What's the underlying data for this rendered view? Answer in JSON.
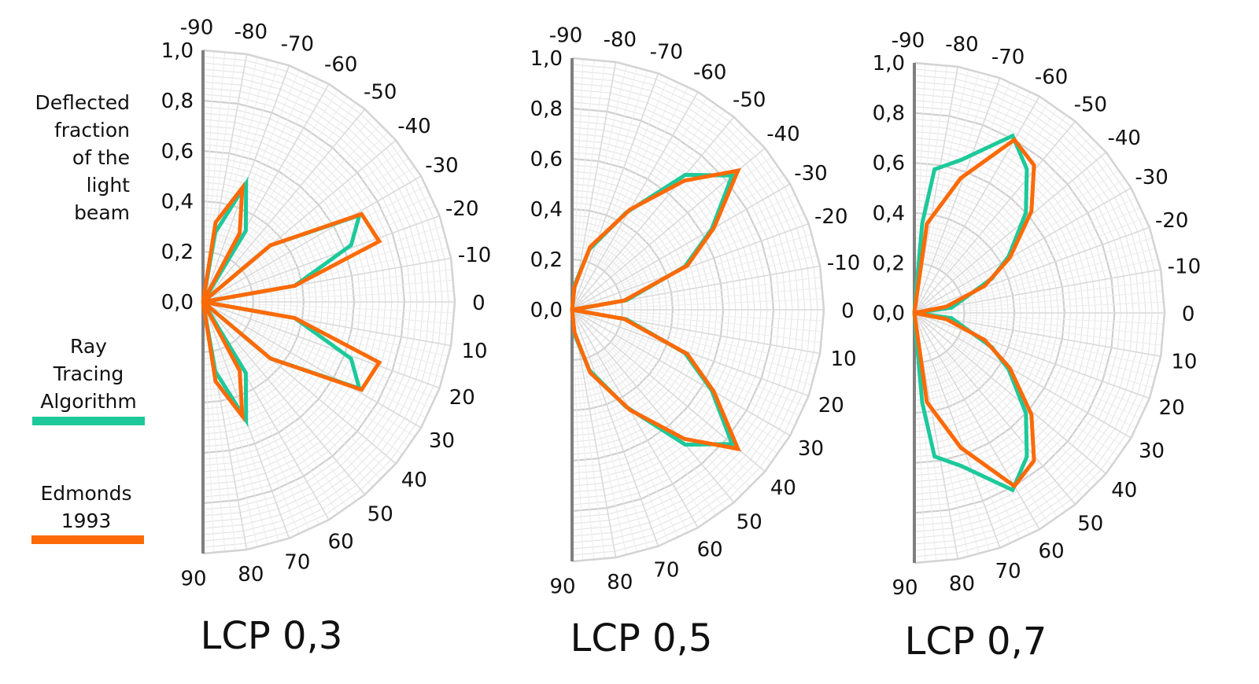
{
  "y_axis_label": [
    "Deflected",
    "fraction",
    "of the",
    "light",
    "beam"
  ],
  "legend": [
    {
      "name": "Ray Tracing Algorithm",
      "lines": [
        "Ray",
        "Tracing",
        "Algorithm"
      ],
      "color": "#1dc99a"
    },
    {
      "name": "Edmonds 1993",
      "lines": [
        "Edmonds",
        "1993"
      ],
      "color": "#fc6a08"
    }
  ],
  "chart_data": [
    {
      "type": "polar-line",
      "title": "LCP 0,3",
      "angle_range": [
        -90,
        90
      ],
      "angle_ticks": [
        "-90",
        "-80",
        "-70",
        "-60",
        "-50",
        "-40",
        "-30",
        "-20",
        "-10",
        "0",
        "10",
        "20",
        "30",
        "40",
        "50",
        "60",
        "70",
        "80",
        "90"
      ],
      "r_range": [
        0,
        1.0
      ],
      "r_ticks": [
        "0,0",
        "0,2",
        "0,4",
        "0,6",
        "0,8",
        "1,0"
      ],
      "grid": true,
      "series": [
        {
          "name": "Ray Tracing Algorithm",
          "points": [
            [
              0,
              0
            ],
            [
              -80,
              0.28
            ],
            [
              -70,
              0.5
            ],
            [
              -59,
              0.33
            ],
            [
              0,
              0
            ],
            [
              -40,
              0.35
            ],
            [
              -29,
              0.71
            ],
            [
              -21,
              0.63
            ],
            [
              -10,
              0.37
            ],
            [
              0,
              0
            ],
            [
              10,
              0.37
            ],
            [
              21,
              0.63
            ],
            [
              29,
              0.71
            ],
            [
              40,
              0.35
            ],
            [
              0,
              0
            ],
            [
              59,
              0.33
            ],
            [
              70,
              0.5
            ],
            [
              80,
              0.28
            ],
            [
              0,
              0
            ]
          ]
        },
        {
          "name": "Edmonds 1993",
          "points": [
            [
              0,
              0
            ],
            [
              -81,
              0.32
            ],
            [
              -71,
              0.48
            ],
            [
              -62,
              0.31
            ],
            [
              0,
              0
            ],
            [
              -40,
              0.35
            ],
            [
              -29,
              0.72
            ],
            [
              -19,
              0.74
            ],
            [
              -10,
              0.37
            ],
            [
              0,
              0
            ],
            [
              10,
              0.37
            ],
            [
              19,
              0.74
            ],
            [
              29,
              0.72
            ],
            [
              40,
              0.35
            ],
            [
              0,
              0
            ],
            [
              62,
              0.31
            ],
            [
              71,
              0.48
            ],
            [
              81,
              0.32
            ],
            [
              0,
              0
            ]
          ]
        }
      ]
    },
    {
      "type": "polar-line",
      "title": "LCP 0,5",
      "angle_range": [
        -90,
        90
      ],
      "angle_ticks": [
        "-90",
        "-80",
        "-70",
        "-60",
        "-50",
        "-40",
        "-30",
        "-20",
        "-10",
        "0",
        "10",
        "20",
        "30",
        "40",
        "50",
        "60",
        "70",
        "80",
        "90"
      ],
      "r_range": [
        0,
        1.0
      ],
      "r_ticks": [
        "0,0",
        "0,2",
        "0,4",
        "0,6",
        "0,8",
        "1,0"
      ],
      "grid": true,
      "series": [
        {
          "name": "Ray Tracing Algorithm",
          "points": [
            [
              -90,
              0
            ],
            [
              -84,
              0.1
            ],
            [
              -74,
              0.25
            ],
            [
              -61,
              0.44
            ],
            [
              -50,
              0.7
            ],
            [
              -40,
              0.83
            ],
            [
              -30,
              0.64
            ],
            [
              -21,
              0.48
            ],
            [
              -10,
              0.22
            ],
            [
              0,
              0
            ],
            [
              10,
              0.22
            ],
            [
              21,
              0.48
            ],
            [
              30,
              0.64
            ],
            [
              40,
              0.83
            ],
            [
              50,
              0.7
            ],
            [
              61,
              0.44
            ],
            [
              74,
              0.25
            ],
            [
              84,
              0.1
            ],
            [
              90,
              0
            ]
          ]
        },
        {
          "name": "Edmonds 1993",
          "points": [
            [
              -90,
              0
            ],
            [
              -84,
              0.09
            ],
            [
              -74,
              0.26
            ],
            [
              -60,
              0.46
            ],
            [
              -49,
              0.68
            ],
            [
              -40,
              0.86
            ],
            [
              -30,
              0.65
            ],
            [
              -21,
              0.49
            ],
            [
              -10,
              0.21
            ],
            [
              0,
              0
            ],
            [
              10,
              0.21
            ],
            [
              21,
              0.49
            ],
            [
              30,
              0.65
            ],
            [
              40,
              0.86
            ],
            [
              49,
              0.68
            ],
            [
              60,
              0.46
            ],
            [
              74,
              0.26
            ],
            [
              84,
              0.09
            ],
            [
              90,
              0
            ]
          ]
        }
      ]
    },
    {
      "type": "polar-line",
      "title": "LCP 0,7",
      "angle_range": [
        -90,
        90
      ],
      "angle_ticks": [
        "-90",
        "-80",
        "-70",
        "-60",
        "-50",
        "-40",
        "-30",
        "-20",
        "-10",
        "0",
        "10",
        "20",
        "30",
        "40",
        "50",
        "60",
        "70",
        "80",
        "90"
      ],
      "r_range": [
        0,
        1.0
      ],
      "r_ticks": [
        "0,0",
        "0,2",
        "0,4",
        "0,6",
        "0,8",
        "1,0"
      ],
      "grid": true,
      "series": [
        {
          "name": "Ray Tracing Algorithm",
          "points": [
            [
              -90,
              0
            ],
            [
              -85,
              0.36
            ],
            [
              -82,
              0.58
            ],
            [
              -73,
              0.64
            ],
            [
              -61,
              0.81
            ],
            [
              -52,
              0.73
            ],
            [
              -42,
              0.6
            ],
            [
              -31,
              0.44
            ],
            [
              -24,
              0.34
            ],
            [
              -8,
              0.15
            ],
            [
              0,
              0
            ],
            [
              8,
              0.15
            ],
            [
              24,
              0.34
            ],
            [
              31,
              0.44
            ],
            [
              42,
              0.6
            ],
            [
              52,
              0.73
            ],
            [
              61,
              0.81
            ],
            [
              73,
              0.64
            ],
            [
              82,
              0.58
            ],
            [
              85,
              0.36
            ],
            [
              90,
              0
            ]
          ]
        },
        {
          "name": "Edmonds 1993",
          "points": [
            [
              -90,
              0
            ],
            [
              -82,
              0.36
            ],
            [
              -71,
              0.57
            ],
            [
              -60,
              0.8
            ],
            [
              -51,
              0.76
            ],
            [
              -41,
              0.62
            ],
            [
              -30,
              0.44
            ],
            [
              -21,
              0.3
            ],
            [
              -11,
              0.13
            ],
            [
              0,
              0
            ],
            [
              11,
              0.13
            ],
            [
              21,
              0.3
            ],
            [
              30,
              0.44
            ],
            [
              41,
              0.62
            ],
            [
              51,
              0.76
            ],
            [
              60,
              0.8
            ],
            [
              71,
              0.57
            ],
            [
              82,
              0.36
            ],
            [
              90,
              0
            ]
          ]
        }
      ]
    }
  ]
}
